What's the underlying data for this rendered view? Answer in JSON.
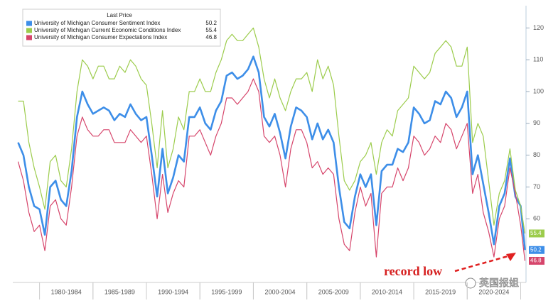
{
  "chart_data": {
    "type": "line",
    "legend_title": "Last Price",
    "legend": "upper-left",
    "annotation": "record low",
    "watermark": "英国报姐",
    "x": [
      1978,
      1978.5,
      1979,
      1979.5,
      1980,
      1980.5,
      1981,
      1981.5,
      1982,
      1982.5,
      1983,
      1983.5,
      1984,
      1984.5,
      1985,
      1985.5,
      1986,
      1986.5,
      1987,
      1987.5,
      1988,
      1988.5,
      1989,
      1989.5,
      1990,
      1990.5,
      1991,
      1991.5,
      1992,
      1992.5,
      1993,
      1993.5,
      1994,
      1994.5,
      1995,
      1995.5,
      1996,
      1996.5,
      1997,
      1997.5,
      1998,
      1998.5,
      1999,
      1999.5,
      2000,
      2000.5,
      2001,
      2001.5,
      2002,
      2002.5,
      2003,
      2003.5,
      2004,
      2004.5,
      2005,
      2005.5,
      2006,
      2006.5,
      2007,
      2007.5,
      2008,
      2008.5,
      2009,
      2009.5,
      2010,
      2010.5,
      2011,
      2011.5,
      2012,
      2012.5,
      2013,
      2013.5,
      2014,
      2014.5,
      2015,
      2015.5,
      2016,
      2016.5,
      2017,
      2017.5,
      2018,
      2018.5,
      2019,
      2019.5,
      2020,
      2020.5,
      2021,
      2021.5,
      2022,
      2022.5,
      2023,
      2023.5,
      2024,
      2024.5,
      2025,
      2025.4
    ],
    "series": [
      {
        "name": "University of Michigan Consumer Sentiment Index",
        "color": "#3d8ee8",
        "width": 2.6,
        "values": [
          84,
          80,
          70,
          64,
          63,
          55,
          70,
          72,
          66,
          64,
          75,
          92,
          100,
          96,
          93,
          94,
          95,
          94,
          91,
          93,
          92,
          96,
          93,
          91,
          92,
          80,
          67,
          82,
          68,
          73,
          80,
          78,
          92,
          92,
          95,
          90,
          88,
          94,
          97,
          105,
          106,
          104,
          105,
          107,
          111,
          106,
          92,
          89,
          93,
          87,
          79,
          89,
          95,
          94,
          92,
          85,
          90,
          85,
          88,
          84,
          70,
          59,
          57,
          67,
          74,
          70,
          74,
          58,
          75,
          77,
          77,
          82,
          81,
          84,
          95,
          93,
          90,
          91,
          97,
          96,
          100,
          98,
          92,
          95,
          100,
          74,
          80,
          71,
          62,
          52,
          64,
          68,
          79,
          67,
          64,
          50.2
        ]
      },
      {
        "name": "University of Michigan Current Economic Conditions Index",
        "color": "#9ccc4c",
        "width": 1.2,
        "values": [
          97,
          97,
          84,
          76,
          70,
          63,
          78,
          80,
          72,
          70,
          82,
          100,
          110,
          108,
          104,
          108,
          108,
          104,
          104,
          108,
          106,
          110,
          108,
          104,
          102,
          90,
          76,
          94,
          76,
          82,
          92,
          88,
          100,
          100,
          104,
          100,
          100,
          106,
          110,
          116,
          118,
          116,
          116,
          118,
          120,
          114,
          104,
          98,
          104,
          98,
          94,
          100,
          104,
          104,
          106,
          100,
          110,
          104,
          108,
          102,
          86,
          72,
          69,
          72,
          78,
          80,
          84,
          74,
          84,
          88,
          86,
          94,
          96,
          98,
          108,
          106,
          104,
          106,
          112,
          114,
          116,
          114,
          108,
          108,
          114,
          84,
          90,
          86,
          72,
          58,
          68,
          72,
          82,
          69,
          64,
          55.4
        ]
      },
      {
        "name": "University of Michigan Consumer Expectations Index",
        "color": "#d6456b",
        "width": 1.2,
        "values": [
          78,
          72,
          62,
          56,
          58,
          50,
          64,
          66,
          60,
          58,
          70,
          86,
          92,
          88,
          86,
          86,
          88,
          88,
          84,
          84,
          84,
          88,
          86,
          84,
          86,
          74,
          60,
          74,
          62,
          68,
          72,
          70,
          86,
          86,
          88,
          84,
          80,
          86,
          90,
          98,
          98,
          96,
          98,
          100,
          104,
          100,
          86,
          84,
          86,
          80,
          70,
          82,
          88,
          88,
          84,
          76,
          78,
          74,
          76,
          74,
          60,
          52,
          50,
          62,
          70,
          64,
          68,
          48,
          68,
          70,
          70,
          76,
          72,
          76,
          86,
          84,
          80,
          82,
          86,
          84,
          90,
          88,
          82,
          86,
          90,
          68,
          74,
          62,
          56,
          48,
          60,
          64,
          76,
          68,
          58,
          46.8
        ]
      }
    ],
    "xlim": [
      1977.5,
      2025.5
    ],
    "xticks": [
      {
        "value": 1982.5,
        "label": "1980-1984"
      },
      {
        "value": 1987.5,
        "label": "1985-1989"
      },
      {
        "value": 1992.5,
        "label": "1990-1994"
      },
      {
        "value": 1997.5,
        "label": "1995-1999"
      },
      {
        "value": 2002.5,
        "label": "2000-2004"
      },
      {
        "value": 2007.5,
        "label": "2005-2009"
      },
      {
        "value": 2012.5,
        "label": "2010-2014"
      },
      {
        "value": 2017.5,
        "label": "2015-2019"
      },
      {
        "value": 2022.5,
        "label": "2020-2024"
      }
    ],
    "ylim": [
      40,
      127
    ],
    "yticks": [
      60,
      70,
      80,
      90,
      100,
      110,
      120
    ],
    "y_axis_side": "right",
    "grid": false
  }
}
